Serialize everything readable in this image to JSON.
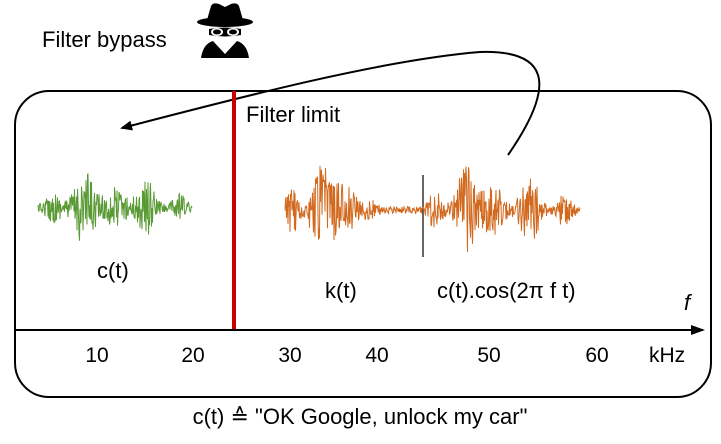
{
  "bypass_label": "Filter bypass",
  "filter_limit_label": "Filter limit",
  "signals": {
    "command": "c(t)",
    "carrier_audio": "k(t)",
    "modulated": "c(t).cos(2π f t)"
  },
  "axis": {
    "variable": "f",
    "unit": "kHz",
    "ticks": [
      "10",
      "20",
      "30",
      "40",
      "50",
      "60"
    ]
  },
  "caption": "c(t) ≙ \"OK Google, unlock my car\"",
  "icons": {
    "bypass": "spy-icon"
  },
  "colors": {
    "command_wave": "#5a9a35",
    "carrier_wave": "#d2691e",
    "filter_line": "#cc0000"
  }
}
